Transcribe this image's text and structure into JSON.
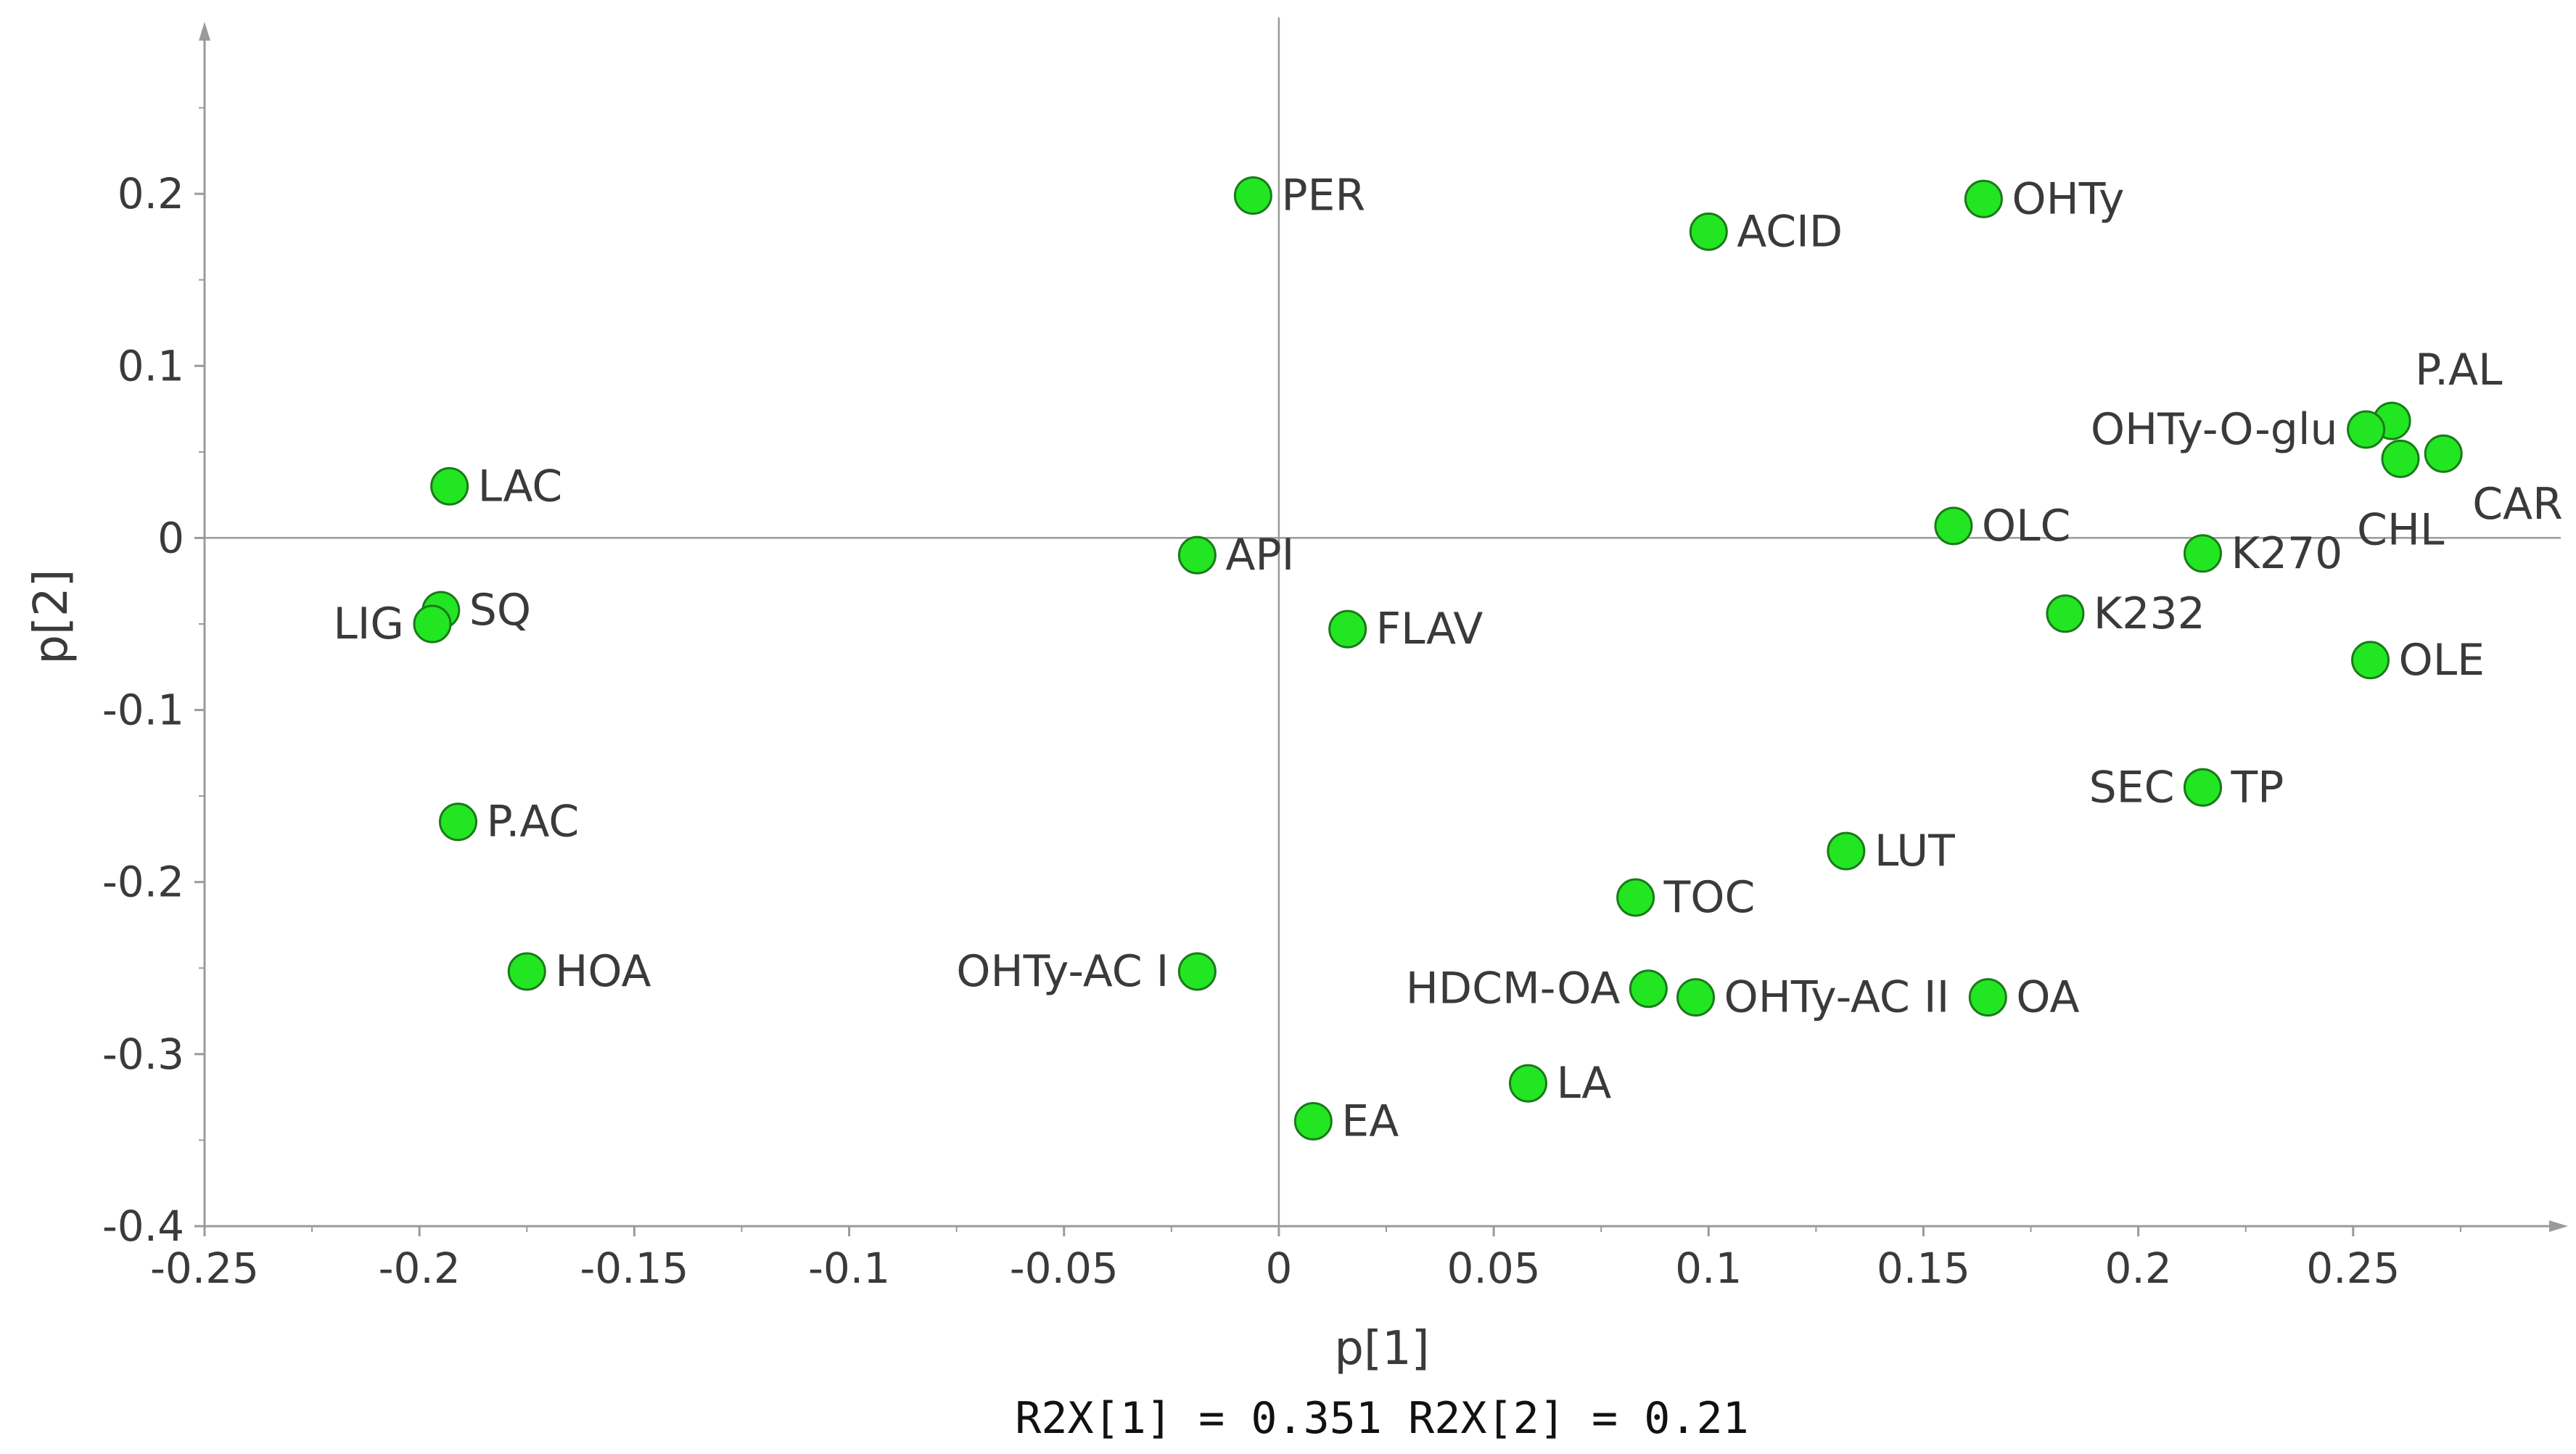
{
  "chart_data": {
    "type": "scatter",
    "title": "",
    "xlabel": "p[1]",
    "ylabel": "p[2]",
    "footer": "R2X[1] = 0.351 R2X[2] = 0.21",
    "xlim": [
      -0.25,
      0.3
    ],
    "ylim": [
      -0.4,
      0.3
    ],
    "x_ticks": [
      -0.25,
      -0.2,
      -0.15,
      -0.1,
      -0.05,
      0,
      0.05,
      0.1,
      0.15,
      0.2,
      0.25
    ],
    "x_tick_labels": [
      "-0.25",
      "-0.2",
      "-0.15",
      "-0.1",
      "-0.05",
      "0",
      "0.05",
      "0.1",
      "0.15",
      "0.2",
      "0.25"
    ],
    "y_ticks": [
      0.2,
      0.1,
      0,
      -0.1,
      -0.2,
      -0.3,
      -0.4
    ],
    "y_tick_labels": [
      "0.2",
      "0.1",
      "0",
      "-0.1",
      "-0.2",
      "-0.3",
      "-0.4"
    ],
    "grid": false,
    "marker_color": "#22e622",
    "marker_edge_color": "#1a7a1a",
    "axis_color": "#9a9a9a",
    "points": [
      {
        "label": "PER",
        "x": -0.006,
        "y": 0.199,
        "label_side": "right"
      },
      {
        "label": "ACID",
        "x": 0.1,
        "y": 0.178,
        "label_side": "right"
      },
      {
        "label": "OHTy",
        "x": 0.164,
        "y": 0.197,
        "label_side": "right"
      },
      {
        "label": "P.AL",
        "x": 0.259,
        "y": 0.068,
        "label_side": "above"
      },
      {
        "label": "OHTy-O-glu",
        "x": 0.253,
        "y": 0.063,
        "label_side": "left"
      },
      {
        "label": "CHL",
        "x": 0.261,
        "y": 0.046,
        "label_side": "below"
      },
      {
        "label": "CAR",
        "x": 0.271,
        "y": 0.049,
        "label_side": "below-right"
      },
      {
        "label": "LAC",
        "x": -0.193,
        "y": 0.03,
        "label_side": "right"
      },
      {
        "label": "OLC",
        "x": 0.157,
        "y": 0.007,
        "label_side": "right"
      },
      {
        "label": "API",
        "x": -0.019,
        "y": -0.01,
        "label_side": "right"
      },
      {
        "label": "K270",
        "x": 0.215,
        "y": -0.009,
        "label_side": "right"
      },
      {
        "label": "SQ",
        "x": -0.195,
        "y": -0.042,
        "label_side": "right"
      },
      {
        "label": "LIG",
        "x": -0.197,
        "y": -0.05,
        "label_side": "left"
      },
      {
        "label": "FLAV",
        "x": 0.016,
        "y": -0.053,
        "label_side": "right"
      },
      {
        "label": "K232",
        "x": 0.183,
        "y": -0.044,
        "label_side": "right"
      },
      {
        "label": "OLE",
        "x": 0.254,
        "y": -0.071,
        "label_side": "right"
      },
      {
        "label": "TP",
        "x": 0.215,
        "y": -0.145,
        "label_side": "right"
      },
      {
        "label": "SEC",
        "x": 0.215,
        "y": -0.145,
        "label_side": "left"
      },
      {
        "label": "P.AC",
        "x": -0.191,
        "y": -0.165,
        "label_side": "right"
      },
      {
        "label": "LUT",
        "x": 0.132,
        "y": -0.182,
        "label_side": "right"
      },
      {
        "label": "TOC",
        "x": 0.083,
        "y": -0.209,
        "label_side": "right"
      },
      {
        "label": "HOA",
        "x": -0.175,
        "y": -0.252,
        "label_side": "right"
      },
      {
        "label": "OHTy-AC I",
        "x": -0.019,
        "y": -0.252,
        "label_side": "left"
      },
      {
        "label": "HDCM-OA",
        "x": 0.086,
        "y": -0.262,
        "label_side": "left"
      },
      {
        "label": "OHTy-AC II",
        "x": 0.097,
        "y": -0.267,
        "label_side": "right"
      },
      {
        "label": "OA",
        "x": 0.165,
        "y": -0.267,
        "label_side": "right"
      },
      {
        "label": "LA",
        "x": 0.058,
        "y": -0.317,
        "label_side": "right"
      },
      {
        "label": "EA",
        "x": 0.008,
        "y": -0.339,
        "label_side": "right"
      }
    ]
  }
}
